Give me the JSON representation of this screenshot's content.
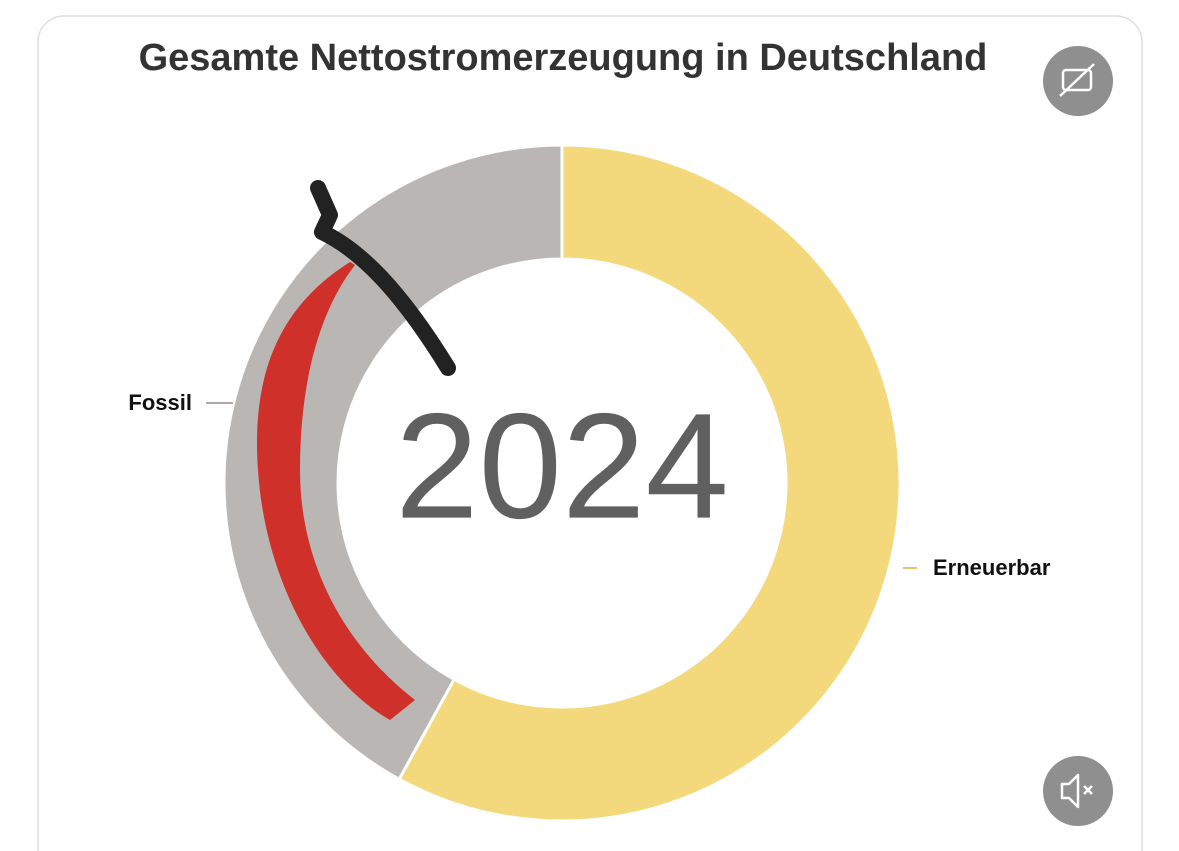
{
  "chart_data": {
    "type": "donut",
    "title": "Gesamte Nettostromerzeugung in Deutschland",
    "center_label": "2024",
    "categories": [
      "Erneuerbar",
      "Fossil"
    ],
    "values": [
      58,
      42
    ],
    "colors": [
      "#f4d97c",
      "#b9b6b4"
    ]
  }
}
